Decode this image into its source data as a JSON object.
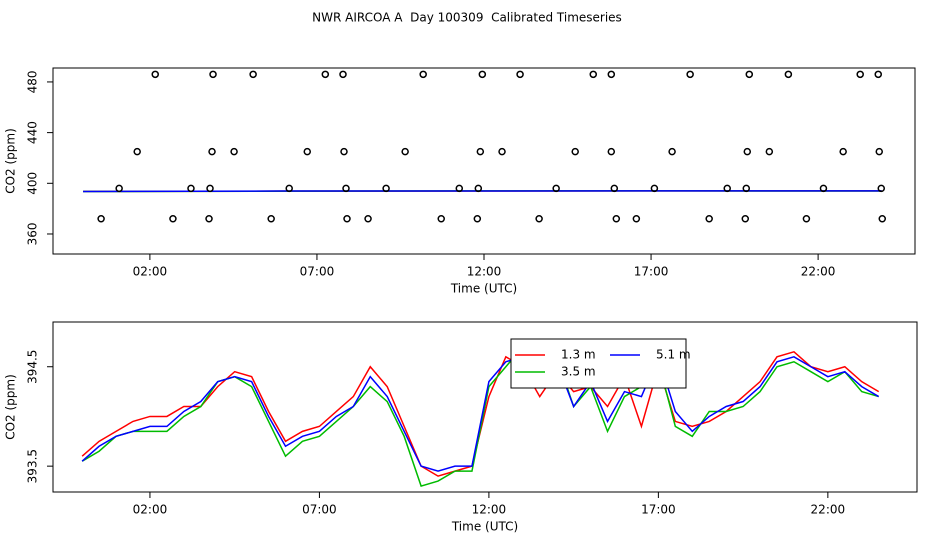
{
  "chart_data": [
    {
      "type": "scatter",
      "title": "NWR AIRCOA A  Day 100309  Calibrated Timeseries",
      "x_label": "Time (UTC)",
      "y_label": "CO2 (ppm)",
      "xlim": [
        -0.9,
        24.9
      ],
      "ylim": [
        344.2,
        491
      ],
      "xticks": [
        {
          "value": 2,
          "label": "02:00"
        },
        {
          "value": 7,
          "label": "07:00"
        },
        {
          "value": 12,
          "label": "12:00"
        },
        {
          "value": 17,
          "label": "17:00"
        },
        {
          "value": 22,
          "label": "22:00"
        }
      ],
      "yticks": [
        360,
        400,
        440,
        480
      ],
      "series": [
        {
          "type": "line",
          "color": "#ff0000",
          "x": [
            0,
            6,
            12,
            18,
            23.9
          ],
          "values": [
            393.6,
            393.8,
            393.9,
            394.0,
            394.0
          ]
        },
        {
          "type": "line",
          "color": "#00bb00",
          "x": [
            0,
            6,
            12,
            18,
            23.9
          ],
          "values": [
            393.5,
            393.8,
            394.0,
            394.0,
            393.9
          ]
        },
        {
          "type": "line",
          "color": "#0000ff",
          "x": [
            0,
            6,
            12,
            18,
            23.9
          ],
          "values": [
            393.5,
            393.9,
            393.9,
            394.0,
            394.0
          ]
        },
        {
          "type": "scatter",
          "color": "#000000",
          "x": [
            2.16,
            3.89,
            5.09,
            7.25,
            7.78,
            10.18,
            11.95,
            13.08,
            15.27,
            15.81,
            18.17,
            19.94,
            21.11,
            23.26,
            23.8,
            1.62,
            3.86,
            4.52,
            6.71,
            7.81,
            9.64,
            11.89,
            12.54,
            14.73,
            15.81,
            17.63,
            19.88,
            20.54,
            22.75,
            23.83,
            1.08,
            3.23,
            3.8,
            6.17,
            7.87,
            9.07,
            11.26,
            11.83,
            14.16,
            15.9,
            17.1,
            19.28,
            19.85,
            22.16,
            23.89,
            0.54,
            2.69,
            3.77,
            5.63,
            7.9,
            8.53,
            10.72,
            11.8,
            13.65,
            15.96,
            16.56,
            18.74,
            19.82,
            21.65,
            23.92
          ],
          "values": [
            486,
            486,
            486,
            486,
            486,
            486,
            486,
            486,
            486,
            486,
            486,
            486,
            486,
            486,
            486,
            425,
            425,
            425,
            425,
            425,
            425,
            425,
            425,
            425,
            425,
            425,
            425,
            425,
            425,
            425,
            396,
            396,
            396,
            396,
            396,
            396,
            396,
            396,
            396,
            396,
            396,
            396,
            396,
            396,
            396,
            372,
            372,
            372,
            372,
            372,
            372,
            372,
            372,
            372,
            372,
            372,
            372,
            372,
            372,
            372
          ]
        }
      ]
    },
    {
      "type": "line",
      "x_label": "Time (UTC)",
      "y_label": "CO2 (ppm)",
      "xlim": [
        -0.86,
        24.63
      ],
      "ylim": [
        393.24,
        394.95
      ],
      "xticks": [
        {
          "value": 2,
          "label": "02:00"
        },
        {
          "value": 7,
          "label": "07:00"
        },
        {
          "value": 12,
          "label": "12:00"
        },
        {
          "value": 17,
          "label": "17:00"
        },
        {
          "value": 22,
          "label": "22:00"
        }
      ],
      "yticks": [
        393.5,
        394.5
      ],
      "x": [
        0,
        0.5,
        1,
        1.5,
        2,
        2.5,
        3,
        3.5,
        4,
        4.5,
        5,
        5.5,
        6,
        6.5,
        7,
        7.5,
        8,
        8.5,
        9,
        9.5,
        10,
        10.5,
        11,
        11.5,
        12,
        12.5,
        13,
        13.5,
        14,
        14.5,
        15,
        15.5,
        16,
        16.5,
        17,
        17.5,
        18,
        18.5,
        19,
        19.5,
        20,
        20.5,
        21,
        21.5,
        22,
        22.5,
        23,
        23.5
      ],
      "series": [
        {
          "name": "1.3 m",
          "color": "#ff0000",
          "values": [
            393.6,
            393.75,
            393.85,
            393.95,
            394.0,
            394.0,
            394.1,
            394.1,
            394.3,
            394.45,
            394.4,
            394.05,
            393.75,
            393.85,
            393.9,
            394.05,
            394.2,
            394.5,
            394.3,
            393.9,
            393.5,
            393.4,
            393.45,
            393.5,
            394.2,
            394.6,
            394.5,
            394.2,
            394.45,
            394.25,
            394.3,
            394.1,
            394.4,
            393.9,
            394.5,
            393.95,
            393.9,
            393.95,
            394.05,
            394.2,
            394.35,
            394.6,
            394.65,
            394.5,
            394.45,
            394.5,
            394.35,
            394.25
          ]
        },
        {
          "name": "3.5 m",
          "color": "#00bb00",
          "values": [
            393.55,
            393.65,
            393.8,
            393.85,
            393.85,
            393.85,
            394.0,
            394.1,
            394.35,
            394.4,
            394.3,
            393.95,
            393.6,
            393.75,
            393.8,
            393.95,
            394.1,
            394.3,
            394.15,
            393.8,
            393.3,
            393.35,
            393.45,
            393.45,
            394.3,
            394.5,
            394.7,
            394.35,
            394.6,
            394.1,
            394.3,
            393.85,
            394.2,
            394.3,
            394.55,
            393.9,
            393.8,
            394.05,
            394.05,
            394.1,
            394.25,
            394.5,
            394.55,
            394.45,
            394.35,
            394.45,
            394.25,
            394.2
          ]
        },
        {
          "name": "5.1 m",
          "color": "#0000ff",
          "values": [
            393.55,
            393.7,
            393.8,
            393.85,
            393.9,
            393.9,
            394.05,
            394.15,
            394.35,
            394.4,
            394.35,
            394.0,
            393.7,
            393.8,
            393.85,
            394.0,
            394.1,
            394.4,
            394.2,
            393.85,
            393.5,
            393.45,
            393.5,
            393.5,
            394.35,
            394.55,
            394.6,
            394.4,
            394.55,
            394.1,
            394.35,
            393.95,
            394.25,
            394.2,
            394.6,
            394.05,
            393.85,
            394.0,
            394.1,
            394.15,
            394.3,
            394.55,
            394.6,
            394.5,
            394.4,
            394.45,
            394.3,
            394.2
          ]
        }
      ]
    }
  ]
}
